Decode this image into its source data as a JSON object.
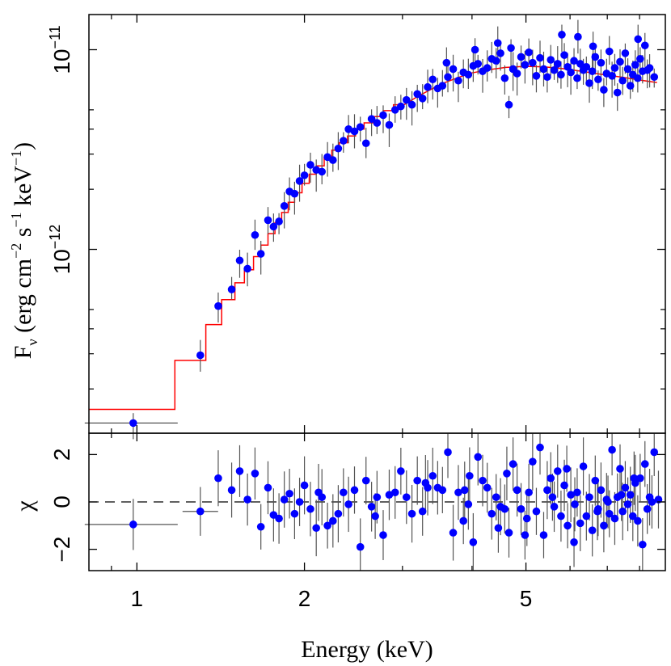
{
  "chart_data": {
    "type": "scatter",
    "xscale": "log",
    "xlim": [
      0.82,
      8.9
    ],
    "xlabel": "Energy (keV)",
    "xticks": [
      1,
      2,
      5
    ],
    "xtick_labels": [
      "1",
      "2",
      "5"
    ],
    "colors": {
      "data_points": "#0000ff",
      "error_bars": "#555555",
      "model": "#ff0000",
      "axes": "#000000"
    },
    "panels": [
      {
        "name": "spectrum",
        "yscale": "log",
        "ylim": [
          1.2e-13,
          1.5e-11
        ],
        "ylabel": {
          "base": "F",
          "sub": "ν",
          "rest_open": " (erg cm",
          "exp1": "−2",
          "mid1": " s",
          "exp2": "−1",
          "mid2": " keV",
          "exp3": "−1",
          "close": ")"
        },
        "yticks": [
          {
            "value": 1e-11,
            "label_base": "10",
            "label_exp": "−11"
          },
          {
            "value": 1e-12,
            "label_base": "10",
            "label_exp": "−12"
          }
        ],
        "minor_yticks": [
          2e-13,
          3e-13,
          4e-13,
          5e-13,
          2e-12,
          3e-12,
          4e-12,
          5e-12
        ],
        "data": [
          [
            0.985,
            1.35e-13
          ],
          [
            1.3,
            2.95e-13
          ],
          [
            1.4,
            5.2e-13
          ],
          [
            1.48,
            6.3e-13
          ],
          [
            1.53,
            8.8e-13
          ],
          [
            1.58,
            8e-13
          ],
          [
            1.63,
            1.18e-12
          ],
          [
            1.67,
            9.5e-13
          ],
          [
            1.72,
            1.4e-12
          ],
          [
            1.76,
            1.3e-12
          ],
          [
            1.8,
            1.38e-12
          ],
          [
            1.84,
            1.65e-12
          ],
          [
            1.88,
            1.95e-12
          ],
          [
            1.92,
            1.9e-12
          ],
          [
            1.96,
            2.2e-12
          ],
          [
            2.0,
            2.35e-12
          ],
          [
            2.05,
            2.65e-12
          ],
          [
            2.1,
            2.5e-12
          ],
          [
            2.15,
            2.45e-12
          ],
          [
            2.2,
            2.9e-12
          ],
          [
            2.25,
            2.8e-12
          ],
          [
            2.3,
            3.2e-12
          ],
          [
            2.35,
            3.5e-12
          ],
          [
            2.4,
            4e-12
          ],
          [
            2.46,
            3.9e-12
          ],
          [
            2.52,
            4.1e-12
          ],
          [
            2.58,
            3.4e-12
          ],
          [
            2.64,
            4.5e-12
          ],
          [
            2.7,
            4.3e-12
          ],
          [
            2.77,
            4.7e-12
          ],
          [
            2.84,
            4.2e-12
          ],
          [
            2.91,
            5e-12
          ],
          [
            2.98,
            5.2e-12
          ],
          [
            3.05,
            5.6e-12
          ],
          [
            3.12,
            5.3e-12
          ],
          [
            3.19,
            6e-12
          ],
          [
            3.26,
            5.7e-12
          ],
          [
            3.33,
            6.5e-12
          ],
          [
            3.4,
            7.1e-12
          ],
          [
            3.47,
            6.4e-12
          ],
          [
            3.54,
            6.6e-12
          ],
          [
            3.62,
            7.3e-12
          ],
          [
            3.7,
            8e-12
          ],
          [
            3.78,
            7e-12
          ],
          [
            3.86,
            7.7e-12
          ],
          [
            3.94,
            7.5e-12
          ],
          [
            4.02,
            8.3e-12
          ],
          [
            4.1,
            8.5e-12
          ],
          [
            4.18,
            7.8e-12
          ],
          [
            4.26,
            8.1e-12
          ],
          [
            4.34,
            9e-12
          ],
          [
            4.42,
            8.8e-12
          ],
          [
            4.5,
            9.6e-12
          ],
          [
            4.58,
            7.2e-12
          ],
          [
            4.66,
            5.3e-12
          ],
          [
            4.74,
            8e-12
          ],
          [
            4.82,
            7.6e-12
          ],
          [
            4.9,
            9.2e-12
          ],
          [
            4.98,
            8.4e-12
          ],
          [
            5.06,
            9.7e-12
          ],
          [
            5.14,
            8.6e-12
          ],
          [
            5.22,
            7.4e-12
          ],
          [
            5.3,
            9.1e-12
          ],
          [
            5.38,
            8e-12
          ],
          [
            5.46,
            7.3e-12
          ],
          [
            5.54,
            8.9e-12
          ],
          [
            5.62,
            7.9e-12
          ],
          [
            5.7,
            8.5e-12
          ],
          [
            5.78,
            7.5e-12
          ],
          [
            5.86,
            9.4e-12
          ],
          [
            5.94,
            8.2e-12
          ],
          [
            6.02,
            7.7e-12
          ],
          [
            6.1,
            8.8e-12
          ],
          [
            6.18,
            7.2e-12
          ],
          [
            6.26,
            8.5e-12
          ],
          [
            6.34,
            7.9e-12
          ],
          [
            6.42,
            8.2e-12
          ],
          [
            6.5,
            6.8e-12
          ],
          [
            6.58,
            7.8e-12
          ],
          [
            6.66,
            9.2e-12
          ],
          [
            6.74,
            7.1e-12
          ],
          [
            6.82,
            8.6e-12
          ],
          [
            6.9,
            6.3e-12
          ],
          [
            6.98,
            7.6e-12
          ],
          [
            7.06,
            9.8e-12
          ],
          [
            7.14,
            7.4e-12
          ],
          [
            7.22,
            8.1e-12
          ],
          [
            7.3,
            6.1e-12
          ],
          [
            7.38,
            8.7e-12
          ],
          [
            7.46,
            7e-12
          ],
          [
            7.54,
            9.6e-12
          ],
          [
            7.62,
            8e-12
          ],
          [
            7.7,
            6.6e-12
          ],
          [
            7.78,
            7.5e-12
          ],
          [
            7.86,
            8.4e-12
          ],
          [
            7.94,
            7.2e-12
          ],
          [
            8.02,
            9e-12
          ],
          [
            8.1,
            7.8e-12
          ],
          [
            8.18,
            1.05e-11
          ],
          [
            8.26,
            7.9e-12
          ],
          [
            8.34,
            8.1e-12
          ],
          [
            8.5,
            7.3e-12
          ],
          [
            4.05,
            1e-11
          ],
          [
            4.45,
            1.08e-11
          ],
          [
            5.8,
            1.19e-11
          ],
          [
            6.2,
            1.16e-11
          ],
          [
            7.95,
            1.13e-11
          ],
          [
            3.6,
            8.6e-12
          ],
          [
            4.7,
            1.02e-11
          ],
          [
            6.6,
            1.04e-11
          ]
        ],
        "model_step": [
          [
            0.82,
            1.58e-13
          ],
          [
            1.17,
            1.58e-13
          ],
          [
            1.17,
            2.78e-13
          ],
          [
            1.33,
            2.78e-13
          ],
          [
            1.33,
            4.2e-13
          ],
          [
            1.42,
            4.2e-13
          ],
          [
            1.42,
            5.6e-13
          ],
          [
            1.5,
            5.6e-13
          ],
          [
            1.5,
            6.8e-13
          ],
          [
            1.56,
            6.8e-13
          ],
          [
            1.56,
            7.9e-13
          ],
          [
            1.62,
            7.9e-13
          ],
          [
            1.62,
            9.2e-13
          ],
          [
            1.67,
            9.2e-13
          ],
          [
            1.67,
            1.05e-12
          ],
          [
            1.72,
            1.05e-12
          ],
          [
            1.72,
            1.2e-12
          ],
          [
            1.77,
            1.2e-12
          ],
          [
            1.77,
            1.36e-12
          ],
          [
            1.82,
            1.36e-12
          ],
          [
            1.82,
            1.53e-12
          ],
          [
            1.87,
            1.53e-12
          ],
          [
            1.87,
            1.72e-12
          ],
          [
            1.92,
            1.72e-12
          ],
          [
            1.92,
            1.92e-12
          ],
          [
            1.98,
            1.92e-12
          ],
          [
            1.98,
            2.14e-12
          ],
          [
            2.04,
            2.14e-12
          ],
          [
            2.04,
            2.38e-12
          ],
          [
            2.1,
            2.38e-12
          ],
          [
            2.1,
            2.62e-12
          ],
          [
            2.17,
            2.62e-12
          ],
          [
            2.17,
            2.88e-12
          ],
          [
            2.24,
            2.88e-12
          ],
          [
            2.24,
            3.14e-12
          ],
          [
            2.31,
            3.14e-12
          ],
          [
            2.31,
            3.42e-12
          ],
          [
            2.39,
            3.42e-12
          ],
          [
            2.39,
            3.7e-12
          ],
          [
            2.47,
            3.7e-12
          ],
          [
            2.47,
            4e-12
          ],
          [
            2.56,
            4e-12
          ],
          [
            2.56,
            4.3e-12
          ],
          [
            2.66,
            4.3e-12
          ],
          [
            2.66,
            4.62e-12
          ],
          [
            2.77,
            4.62e-12
          ],
          [
            2.77,
            4.95e-12
          ],
          [
            2.89,
            4.95e-12
          ],
          [
            2.89,
            5.3e-12
          ],
          [
            3.02,
            5.3e-12
          ]
        ],
        "model_curve": [
          [
            3.02,
            5.3e-12
          ],
          [
            3.2,
            5.85e-12
          ],
          [
            3.4,
            6.4e-12
          ],
          [
            3.6,
            6.9e-12
          ],
          [
            3.8,
            7.3e-12
          ],
          [
            4.0,
            7.65e-12
          ],
          [
            4.3,
            7.95e-12
          ],
          [
            4.6,
            8.15e-12
          ],
          [
            5.0,
            8.25e-12
          ],
          [
            5.4,
            8.2e-12
          ],
          [
            5.8,
            8.05e-12
          ],
          [
            6.3,
            7.8e-12
          ],
          [
            6.8,
            7.55e-12
          ],
          [
            7.4,
            7.3e-12
          ],
          [
            8.0,
            7.05e-12
          ],
          [
            8.6,
            6.85e-12
          ]
        ]
      },
      {
        "name": "residuals",
        "yscale": "linear",
        "ylim": [
          -2.9,
          2.9
        ],
        "ylabel": "χ",
        "yticks": [
          -2,
          0,
          2
        ],
        "ytick_labels": [
          "−2",
          "0",
          "2"
        ],
        "zero_line": "dashed",
        "data": [
          [
            0.985,
            -0.95
          ],
          [
            1.3,
            -0.4
          ],
          [
            1.4,
            1.0
          ],
          [
            1.48,
            0.5
          ],
          [
            1.53,
            1.3
          ],
          [
            1.58,
            0.1
          ],
          [
            1.63,
            1.2
          ],
          [
            1.67,
            -1.05
          ],
          [
            1.72,
            0.6
          ],
          [
            1.76,
            -0.55
          ],
          [
            1.8,
            -0.7
          ],
          [
            1.84,
            0.1
          ],
          [
            1.88,
            0.35
          ],
          [
            1.92,
            -0.5
          ],
          [
            1.96,
            0.0
          ],
          [
            2.0,
            0.7
          ],
          [
            2.05,
            -0.3
          ],
          [
            2.1,
            -1.1
          ],
          [
            2.15,
            0.2
          ],
          [
            2.2,
            -1.0
          ],
          [
            2.25,
            -0.8
          ],
          [
            2.3,
            -0.5
          ],
          [
            2.35,
            0.4
          ],
          [
            2.4,
            -0.1
          ],
          [
            2.46,
            0.5
          ],
          [
            2.52,
            -1.9
          ],
          [
            2.58,
            0.9
          ],
          [
            2.64,
            -0.2
          ],
          [
            2.7,
            0.2
          ],
          [
            2.77,
            -1.4
          ],
          [
            2.84,
            0.3
          ],
          [
            2.91,
            0.4
          ],
          [
            2.98,
            1.3
          ],
          [
            3.05,
            0.2
          ],
          [
            3.12,
            -0.5
          ],
          [
            3.19,
            0.9
          ],
          [
            3.26,
            -0.4
          ],
          [
            3.33,
            0.6
          ],
          [
            3.4,
            1.1
          ],
          [
            3.47,
            0.6
          ],
          [
            3.54,
            0.5
          ],
          [
            3.62,
            2.1
          ],
          [
            3.7,
            -1.3
          ],
          [
            3.78,
            0.4
          ],
          [
            3.86,
            -0.8
          ],
          [
            3.94,
            -0.1
          ],
          [
            4.02,
            -1.7
          ],
          [
            4.1,
            1.9
          ],
          [
            4.18,
            0.9
          ],
          [
            4.26,
            0.6
          ],
          [
            4.34,
            -0.5
          ],
          [
            4.42,
            0.2
          ],
          [
            4.5,
            -0.2
          ],
          [
            4.58,
            -0.3
          ],
          [
            4.66,
            -1.3
          ],
          [
            4.74,
            1.6
          ],
          [
            4.82,
            0.5
          ],
          [
            4.9,
            -0.3
          ],
          [
            4.98,
            -1.4
          ],
          [
            5.06,
            0.4
          ],
          [
            5.14,
            1.7
          ],
          [
            5.22,
            -0.4
          ],
          [
            5.3,
            2.3
          ],
          [
            5.38,
            -1.4
          ],
          [
            5.46,
            0.5
          ],
          [
            5.54,
            1.0
          ],
          [
            5.62,
            -0.2
          ],
          [
            5.7,
            1.3
          ],
          [
            5.78,
            -0.6
          ],
          [
            5.86,
            0.7
          ],
          [
            5.94,
            -1.0
          ],
          [
            6.02,
            0.3
          ],
          [
            6.1,
            -1.7
          ],
          [
            6.18,
            0.4
          ],
          [
            6.26,
            -0.9
          ],
          [
            6.34,
            1.5
          ],
          [
            6.42,
            -0.6
          ],
          [
            6.5,
            0.2
          ],
          [
            6.58,
            -1.2
          ],
          [
            6.66,
            0.9
          ],
          [
            6.74,
            -0.3
          ],
          [
            6.82,
            0.5
          ],
          [
            6.9,
            -1.0
          ],
          [
            6.98,
            0.1
          ],
          [
            7.06,
            -0.5
          ],
          [
            7.14,
            2.2
          ],
          [
            7.22,
            -0.7
          ],
          [
            7.3,
            0.2
          ],
          [
            7.38,
            1.4
          ],
          [
            7.46,
            -0.4
          ],
          [
            7.54,
            0.6
          ],
          [
            7.62,
            -0.1
          ],
          [
            7.7,
            0.3
          ],
          [
            7.78,
            -0.6
          ],
          [
            7.86,
            0.8
          ],
          [
            7.94,
            -0.8
          ],
          [
            8.02,
            1.0
          ],
          [
            8.1,
            -1.8
          ],
          [
            8.18,
            1.6
          ],
          [
            8.26,
            -0.3
          ],
          [
            8.34,
            0.2
          ],
          [
            8.5,
            2.1
          ],
          [
            3.96,
            1.1
          ],
          [
            4.62,
            1.2
          ],
          [
            5.02,
            -0.7
          ],
          [
            5.92,
            1.4
          ],
          [
            6.12,
            -0.1
          ],
          [
            6.72,
            -0.4
          ],
          [
            7.02,
            0.0
          ],
          [
            7.42,
            0.3
          ],
          [
            7.82,
            1.0
          ],
          [
            8.42,
            0.0
          ],
          [
            8.65,
            0.1
          ],
          [
            2.12,
            0.4
          ],
          [
            2.68,
            -0.6
          ],
          [
            3.3,
            0.8
          ],
          [
            3.88,
            0.5
          ],
          [
            4.46,
            -1.1
          ],
          [
            5.58,
            0.2
          ]
        ]
      }
    ]
  }
}
